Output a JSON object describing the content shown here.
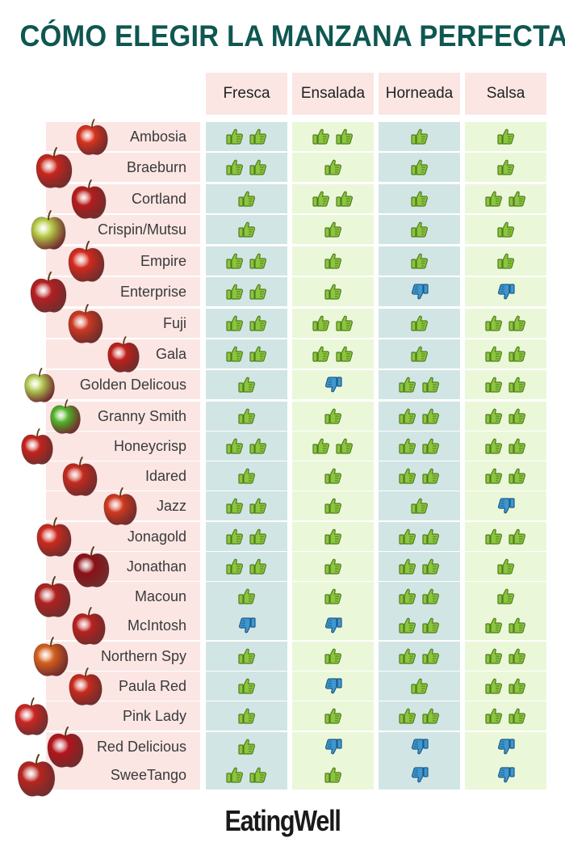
{
  "title": "CÓMO ELEGIR LA MANZANA PERFECTA",
  "columns": [
    "Fresca",
    "Ensalada",
    "Horneada",
    "Salsa"
  ],
  "rows": [
    {
      "name": "Ambosia",
      "ratings": [
        "up2",
        "up2",
        "up1",
        "up1"
      ]
    },
    {
      "name": "Braeburn",
      "ratings": [
        "up2",
        "up1",
        "up1",
        "up1"
      ]
    },
    {
      "name": "Cortland",
      "ratings": [
        "up1",
        "up2",
        "up1",
        "up2"
      ]
    },
    {
      "name": "Crispin/Mutsu",
      "ratings": [
        "up1",
        "up1",
        "up1",
        "up1"
      ]
    },
    {
      "name": "Empire",
      "ratings": [
        "up2",
        "up1",
        "up1",
        "up1"
      ]
    },
    {
      "name": "Enterprise",
      "ratings": [
        "up2",
        "up1",
        "down",
        "down"
      ]
    },
    {
      "name": "Fuji",
      "ratings": [
        "up2",
        "up2",
        "up1",
        "up2"
      ]
    },
    {
      "name": "Gala",
      "ratings": [
        "up2",
        "up2",
        "up1",
        "up2"
      ]
    },
    {
      "name": "Golden Delicous",
      "ratings": [
        "up1",
        "down",
        "up2",
        "up2"
      ]
    },
    {
      "name": "Granny Smith",
      "ratings": [
        "up1",
        "up1",
        "up2",
        "up2"
      ]
    },
    {
      "name": "Honeycrisp",
      "ratings": [
        "up2",
        "up2",
        "up2",
        "up2"
      ]
    },
    {
      "name": "Idared",
      "ratings": [
        "up1",
        "up1",
        "up2",
        "up2"
      ]
    },
    {
      "name": "Jazz",
      "ratings": [
        "up2",
        "up1",
        "up1",
        "down"
      ]
    },
    {
      "name": "Jonagold",
      "ratings": [
        "up2",
        "up1",
        "up2",
        "up2"
      ]
    },
    {
      "name": "Jonathan",
      "ratings": [
        "up2",
        "up1",
        "up2",
        "up1"
      ]
    },
    {
      "name": "Macoun",
      "ratings": [
        "up1",
        "up1",
        "up2",
        "up1"
      ]
    },
    {
      "name": "McIntosh",
      "ratings": [
        "down",
        "down",
        "up2",
        "up2"
      ]
    },
    {
      "name": "Northern Spy",
      "ratings": [
        "up1",
        "up1",
        "up2",
        "up2"
      ]
    },
    {
      "name": "Paula Red",
      "ratings": [
        "up1",
        "down",
        "up1",
        "up2"
      ]
    },
    {
      "name": "Pink Lady",
      "ratings": [
        "up1",
        "up1",
        "up2",
        "up2"
      ]
    },
    {
      "name": "Red Delicious",
      "ratings": [
        "up1",
        "down",
        "down",
        "down"
      ]
    },
    {
      "name": "SweeTango",
      "ratings": [
        "up2",
        "up1",
        "down",
        "down"
      ]
    }
  ],
  "apple_colors": [
    "#d8331f",
    "#c9261d",
    "#b81c1c",
    "#b7cf4a",
    "#d42a1e",
    "#b51f22",
    "#cc3a22",
    "#c0201b",
    "#b4cf56",
    "#4fb82c",
    "#c4231c",
    "#c52a1e",
    "#d03a1f",
    "#cc2a1e",
    "#8a1116",
    "#b02220",
    "#b8211f",
    "#d6621e",
    "#c92b1d",
    "#cc2522",
    "#b3141b",
    "#b8241f"
  ],
  "colors": {
    "title": "#0f5751",
    "header_bg": "#fbe6e4",
    "col_teal": "#d1e5e4",
    "col_green": "#ebf7d9",
    "thumb_up": "#8cc53e",
    "thumb_down": "#3e98cf"
  },
  "brand": "EatingWell"
}
